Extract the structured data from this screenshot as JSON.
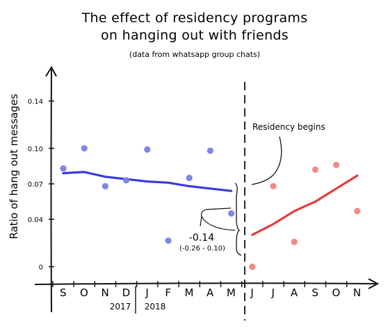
{
  "chart_data": {
    "type": "scatter",
    "title_line1": "The effect of residency programs",
    "title_line2": "on hanging out with friends",
    "subtitle": "(data from whatsapp group chats)",
    "ylabel": "Ratio of hang out messages",
    "y_ticks": [
      "0",
      "0.04",
      "0.07",
      "0.10",
      "0.14"
    ],
    "y_tick_values": [
      0,
      0.04,
      0.07,
      0.1,
      0.14
    ],
    "ylim": [
      -0.005,
      0.145
    ],
    "categories": [
      "S",
      "O",
      "N",
      "D",
      "J",
      "F",
      "M",
      "A",
      "M",
      "J",
      "J",
      "A",
      "S",
      "O",
      "N"
    ],
    "year_labels": [
      "2017",
      "2018"
    ],
    "series": [
      {
        "color": "#7b86ea",
        "points": [
          {
            "x": 0,
            "y": 0.083
          },
          {
            "x": 1,
            "y": 0.1
          },
          {
            "x": 2,
            "y": 0.068
          },
          {
            "x": 3,
            "y": 0.073
          },
          {
            "x": 4,
            "y": 0.099
          },
          {
            "x": 5,
            "y": 0.022
          },
          {
            "x": 6,
            "y": 0.075
          },
          {
            "x": 7,
            "y": 0.098
          },
          {
            "x": 8,
            "y": 0.045
          }
        ],
        "fit_color": "#3a3ae0",
        "fit": [
          {
            "x": 0,
            "y": 0.079
          },
          {
            "x": 1,
            "y": 0.08
          },
          {
            "x": 2,
            "y": 0.076
          },
          {
            "x": 3,
            "y": 0.074
          },
          {
            "x": 4,
            "y": 0.072
          },
          {
            "x": 5,
            "y": 0.071
          },
          {
            "x": 6,
            "y": 0.068
          },
          {
            "x": 7,
            "y": 0.066
          },
          {
            "x": 8,
            "y": 0.064
          }
        ]
      },
      {
        "color": "#f08a88",
        "points": [
          {
            "x": 9,
            "y": 0.0
          },
          {
            "x": 10,
            "y": 0.068
          },
          {
            "x": 11,
            "y": 0.021
          },
          {
            "x": 12,
            "y": 0.082
          },
          {
            "x": 13,
            "y": 0.086
          },
          {
            "x": 14,
            "y": 0.047
          }
        ],
        "fit_color": "#e53b3b",
        "fit": [
          {
            "x": 9,
            "y": 0.027
          },
          {
            "x": 10,
            "y": 0.036
          },
          {
            "x": 11,
            "y": 0.047
          },
          {
            "x": 12,
            "y": 0.055
          },
          {
            "x": 13,
            "y": 0.066
          },
          {
            "x": 14,
            "y": 0.077
          }
        ]
      }
    ],
    "annotations": {
      "residency": "Residency begins",
      "effect": "-0.14",
      "effect_ci": "(-0.26 - 0.10)"
    }
  }
}
